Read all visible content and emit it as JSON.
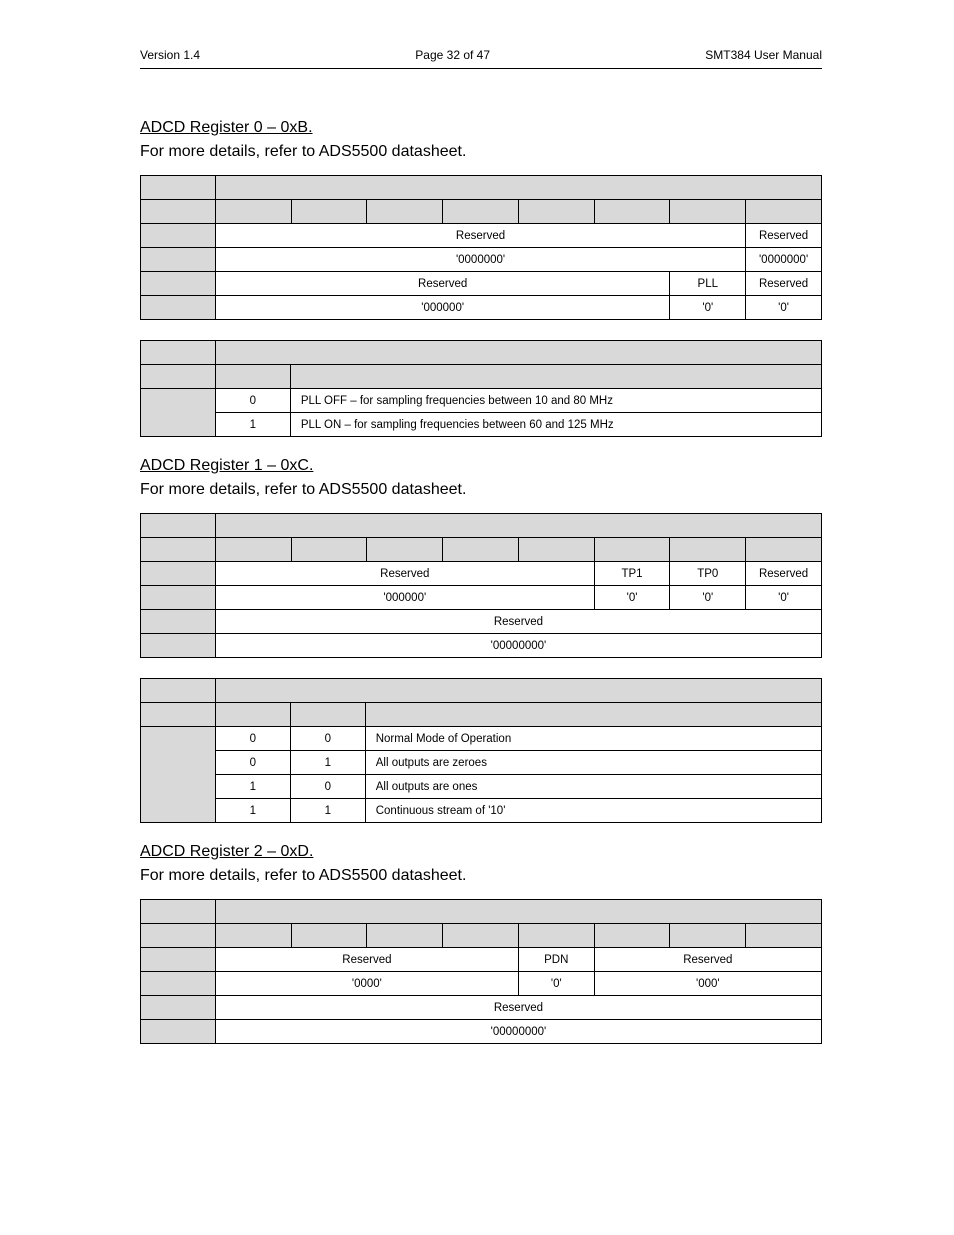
{
  "header": {
    "left": "Version 1.4",
    "center": "Page 32 of 47",
    "right": "SMT384 User Manual"
  },
  "sections": [
    {
      "title": "ADCD Register 0 – 0xB.",
      "sub": "For more details, refer to ADS5500 datasheet."
    },
    {
      "title": "ADCD Register 1 – 0xC.",
      "sub": "For more details, refer to ADS5500 datasheet."
    },
    {
      "title": "ADCD Register 2 – 0xD.",
      "sub": "For more details, refer to ADS5500 datasheet."
    }
  ],
  "reg0_bits": {
    "row_hi_label": "Reserved",
    "row_hi_reset": "'0000000'",
    "row_hi_last": "Reserved",
    "row_hi_last_reset": "'0000000'",
    "row_lo_label": "Reserved",
    "row_lo_reset": "'000000'",
    "pll": "PLL",
    "pll_reset": "'0'",
    "row_lo_last": "Reserved",
    "row_lo_last_reset": "'0'"
  },
  "reg0_desc": {
    "r0_val": "0",
    "r0_txt": "PLL OFF – for sampling frequencies between 10 and 80 MHz",
    "r1_val": "1",
    "r1_txt": "PLL ON – for sampling frequencies between 60 and 125 MHz"
  },
  "reg1_bits": {
    "hi_res": "Reserved",
    "hi_res_reset": "'000000'",
    "tp1": "TP1",
    "tp1_reset": "'0'",
    "tp0": "TP0",
    "tp0_reset": "'0'",
    "hi_last": "Reserved",
    "hi_last_reset": "'0'",
    "lo_res": "Reserved",
    "lo_res_reset": "'00000000'"
  },
  "reg1_desc": {
    "r0_a": "0",
    "r0_b": "0",
    "r0_txt": "Normal Mode of Operation",
    "r1_a": "0",
    "r1_b": "1",
    "r1_txt": "All outputs are zeroes",
    "r2_a": "1",
    "r2_b": "0",
    "r2_txt": "All outputs are ones",
    "r3_a": "1",
    "r3_b": "1",
    "r3_txt": "Continuous stream of '10'"
  },
  "reg2_bits": {
    "hi_res": "Reserved",
    "hi_res_reset": "'0000'",
    "pdn": "PDN",
    "pdn_reset": "'0'",
    "hi_res2": "Reserved",
    "hi_res2_reset": "'000'",
    "lo_res": "Reserved",
    "lo_res_reset": "'00000000'"
  }
}
